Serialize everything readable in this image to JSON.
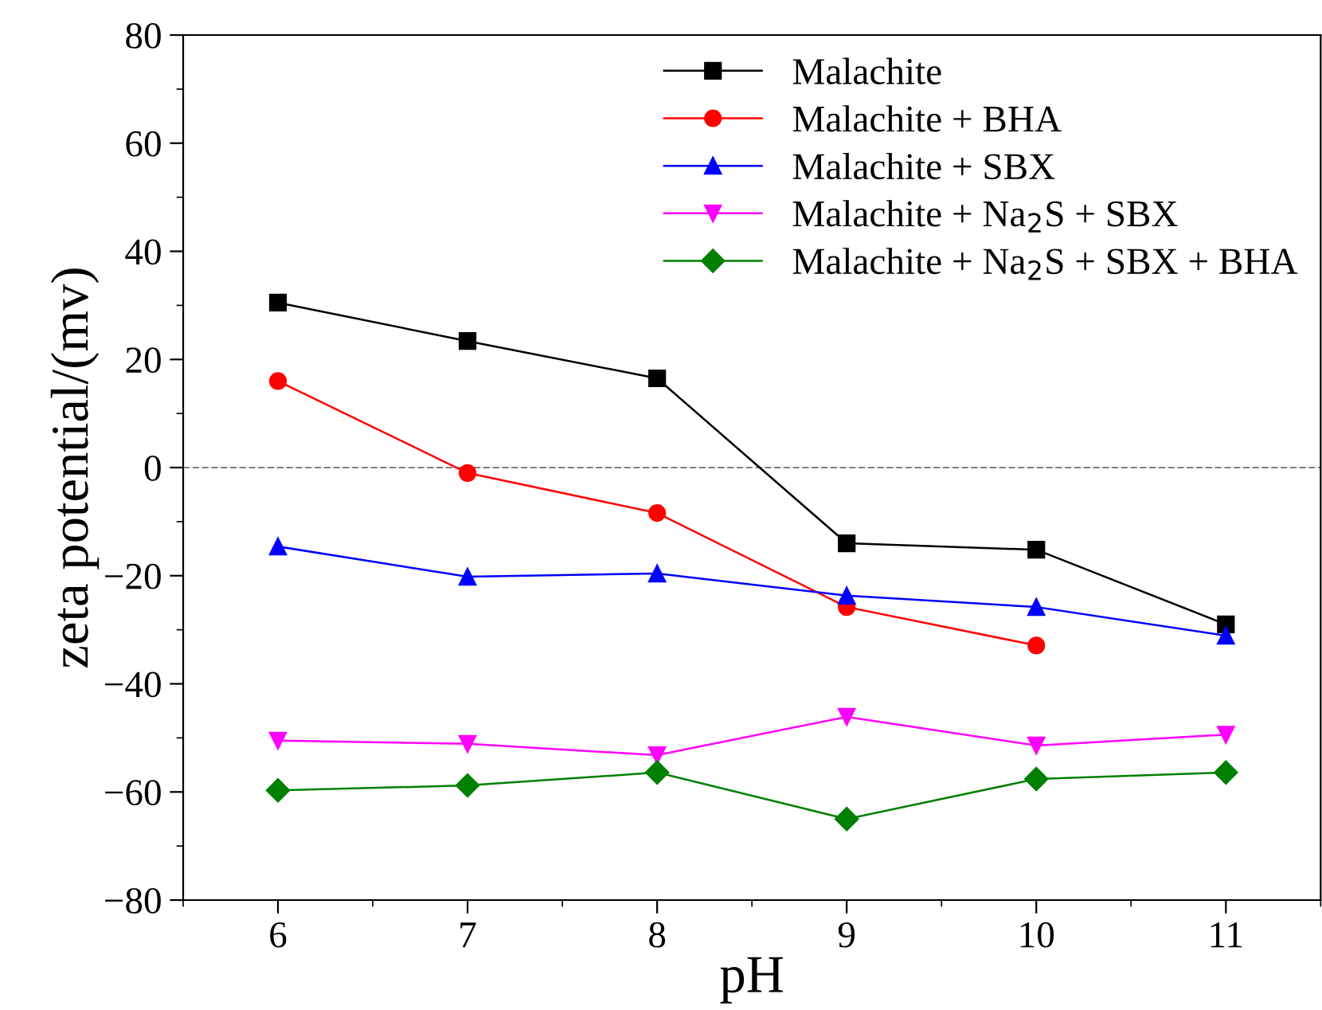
{
  "chart_data": {
    "type": "line",
    "xlabel": "pH",
    "ylabel": "zeta potential/(mv)",
    "x": [
      6,
      7,
      8,
      9,
      10,
      11
    ],
    "xlim": [
      5.5,
      11.5
    ],
    "xticks": [
      6,
      7,
      8,
      9,
      10,
      11
    ],
    "ylim": [
      -80,
      80
    ],
    "yticks": [
      {
        "value": -80,
        "label": "−80"
      },
      {
        "value": -60,
        "label": "−60"
      },
      {
        "value": -40,
        "label": "−40"
      },
      {
        "value": -20,
        "label": "−20"
      },
      0,
      20,
      40,
      60,
      80
    ],
    "grid": false,
    "legend": "top right",
    "line_style": "solid",
    "series": [
      {
        "name": "Malachite",
        "color": "#000000",
        "marker": "square",
        "values": [
          30.5,
          23.4,
          16.5,
          -14,
          -15.2,
          -29
        ]
      },
      {
        "name": "Malachite + BHA",
        "color": "#ff0000",
        "marker": "circle",
        "values": [
          16,
          -1,
          -8.4,
          -25.8,
          -32.9,
          null
        ]
      },
      {
        "name": "Malachite + SBX",
        "color": "#0000ff",
        "marker": "triangle",
        "values": [
          -14.6,
          -20.2,
          -19.6,
          -23.7,
          -25.8,
          -31.1
        ]
      },
      {
        "name": "Malachite + Na$_{2}$S + SBX",
        "color": "#ff00ff",
        "marker": "triangle_down",
        "values": [
          -50.5,
          -51.1,
          -53.2,
          -46.1,
          -51.4,
          -49.4
        ]
      },
      {
        "name": "Malachite + Na$_{2}$S + SBX + BHA",
        "color": "#008000",
        "marker": "diamond",
        "values": [
          -59.7,
          -58.8,
          -56.4,
          -65,
          -57.6,
          -56.4
        ]
      }
    ],
    "ref_lines": [
      {
        "axis": "y",
        "value": 0,
        "color": "#808080",
        "line_style": "dashed"
      }
    ]
  }
}
